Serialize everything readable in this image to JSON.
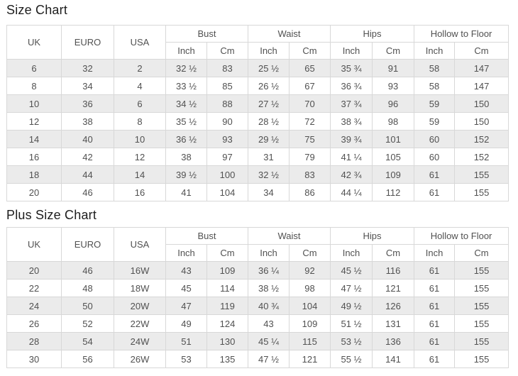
{
  "colors": {
    "stripe_row": "#ebebeb",
    "table_border": "#d8d8d8",
    "cell_text": "#515151",
    "title_text": "#1d1d1d"
  },
  "chart_data": [
    {
      "type": "table",
      "title": "Size Chart",
      "size_headers": [
        "UK",
        "EURO",
        "USA"
      ],
      "measure_groups": [
        "Bust",
        "Waist",
        "Hips",
        "Hollow to Floor"
      ],
      "unit_labels": [
        "Inch",
        "Cm"
      ],
      "rows": [
        [
          "6",
          "32",
          "2",
          "32 ½",
          "83",
          "25 ½",
          "65",
          "35 ¾",
          "91",
          "58",
          "147"
        ],
        [
          "8",
          "34",
          "4",
          "33 ½",
          "85",
          "26 ½",
          "67",
          "36 ¾",
          "93",
          "58",
          "147"
        ],
        [
          "10",
          "36",
          "6",
          "34 ½",
          "88",
          "27 ½",
          "70",
          "37 ¾",
          "96",
          "59",
          "150"
        ],
        [
          "12",
          "38",
          "8",
          "35 ½",
          "90",
          "28 ½",
          "72",
          "38 ¾",
          "98",
          "59",
          "150"
        ],
        [
          "14",
          "40",
          "10",
          "36 ½",
          "93",
          "29 ½",
          "75",
          "39 ¾",
          "101",
          "60",
          "152"
        ],
        [
          "16",
          "42",
          "12",
          "38",
          "97",
          "31",
          "79",
          "41 ¼",
          "105",
          "60",
          "152"
        ],
        [
          "18",
          "44",
          "14",
          "39 ½",
          "100",
          "32 ½",
          "83",
          "42 ¾",
          "109",
          "61",
          "155"
        ],
        [
          "20",
          "46",
          "16",
          "41",
          "104",
          "34",
          "86",
          "44 ¼",
          "112",
          "61",
          "155"
        ]
      ]
    },
    {
      "type": "table",
      "title": "Plus Size Chart",
      "size_headers": [
        "UK",
        "EURO",
        "USA"
      ],
      "measure_groups": [
        "Bust",
        "Waist",
        "Hips",
        "Hollow to Floor"
      ],
      "unit_labels": [
        "Inch",
        "Cm"
      ],
      "rows": [
        [
          "20",
          "46",
          "16W",
          "43",
          "109",
          "36 ¼",
          "92",
          "45 ½",
          "116",
          "61",
          "155"
        ],
        [
          "22",
          "48",
          "18W",
          "45",
          "114",
          "38 ½",
          "98",
          "47 ½",
          "121",
          "61",
          "155"
        ],
        [
          "24",
          "50",
          "20W",
          "47",
          "119",
          "40 ¾",
          "104",
          "49 ½",
          "126",
          "61",
          "155"
        ],
        [
          "26",
          "52",
          "22W",
          "49",
          "124",
          "43",
          "109",
          "51 ½",
          "131",
          "61",
          "155"
        ],
        [
          "28",
          "54",
          "24W",
          "51",
          "130",
          "45 ¼",
          "115",
          "53 ½",
          "136",
          "61",
          "155"
        ],
        [
          "30",
          "56",
          "26W",
          "53",
          "135",
          "47 ½",
          "121",
          "55 ½",
          "141",
          "61",
          "155"
        ]
      ]
    }
  ]
}
